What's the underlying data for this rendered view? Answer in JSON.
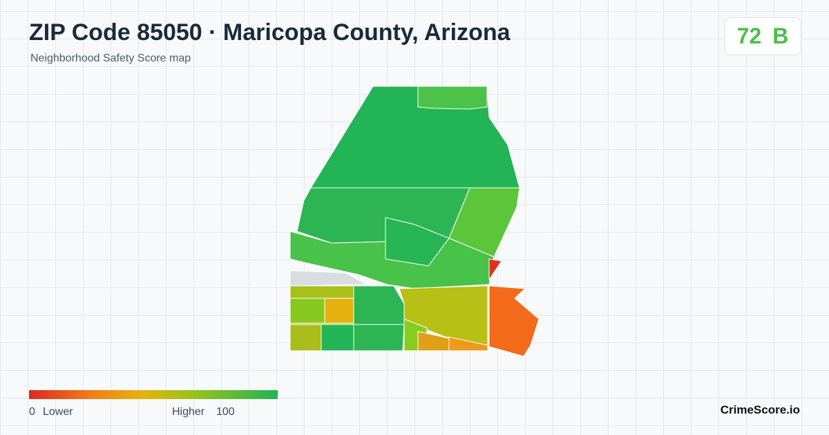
{
  "header": {
    "title": "ZIP Code 85050 · Maricopa County, Arizona",
    "subtitle": "Neighborhood Safety Score map"
  },
  "badge": {
    "score": "72",
    "grade": "B"
  },
  "legend": {
    "min": "0",
    "min_label": "Lower",
    "max_label": "Higher",
    "max": "100"
  },
  "brand": "CrimeScore.io"
}
